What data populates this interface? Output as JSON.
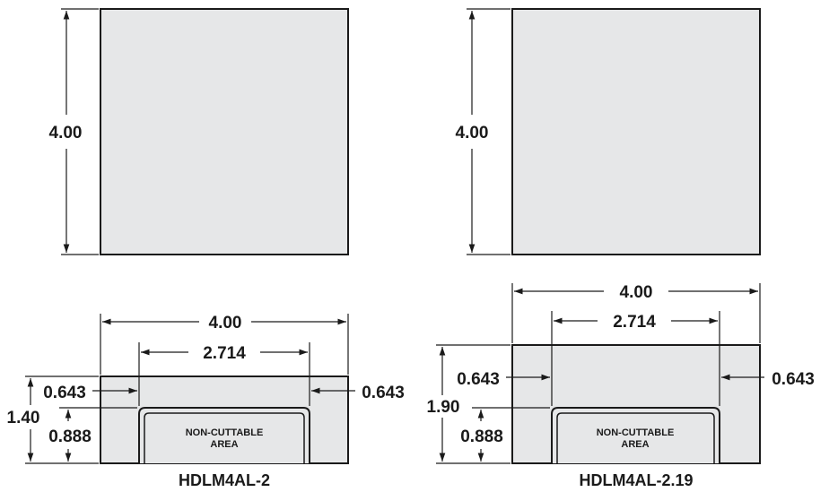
{
  "colors": {
    "part_fill": "#e6e7e8",
    "stroke": "#1a1a1a",
    "background": "#ffffff"
  },
  "left": {
    "top_view": {
      "height_label": "4.00"
    },
    "front_view": {
      "width_label": "4.00",
      "inner_width_label": "2.714",
      "left_wall_label": "0.643",
      "right_wall_label": "0.643",
      "total_height_label": "1.40",
      "pocket_height_label": "0.888",
      "pocket_label_line1": "NON-CUTTABLE",
      "pocket_label_line2": "AREA"
    },
    "model_name": "HDLM4AL-2"
  },
  "right": {
    "top_view": {
      "height_label": "4.00"
    },
    "front_view": {
      "width_label": "4.00",
      "inner_width_label": "2.714",
      "left_wall_label": "0.643",
      "right_wall_label": "0.643",
      "total_height_label": "1.90",
      "pocket_height_label": "0.888",
      "pocket_label_line1": "NON-CUTTABLE",
      "pocket_label_line2": "AREA"
    },
    "model_name": "HDLM4AL-2.19"
  }
}
